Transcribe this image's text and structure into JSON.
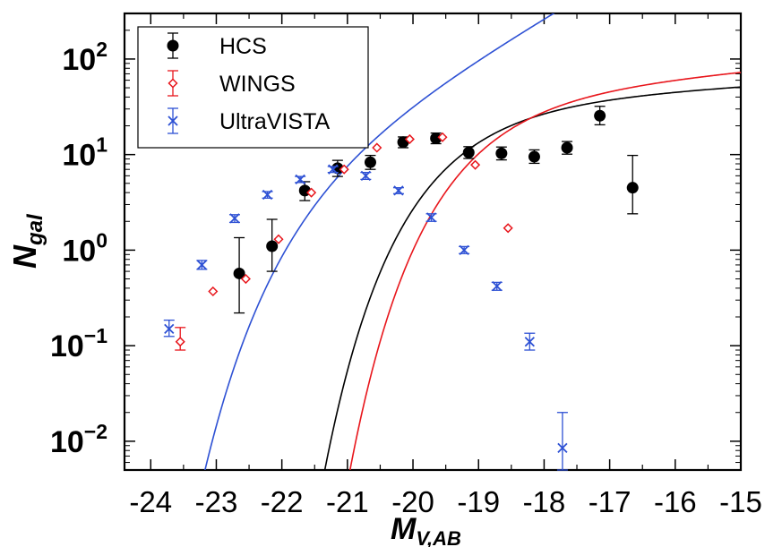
{
  "chart_data": {
    "type": "scatter",
    "title": "",
    "xlabel": "M",
    "xlabel_sub": "V,AB",
    "ylabel": "N",
    "ylabel_sub": "gal",
    "y_scale": "log",
    "xlim": [
      -24.4,
      -15.0
    ],
    "ylim": [
      0.005,
      300
    ],
    "x_ticks": [
      -24,
      -23,
      -22,
      -21,
      -20,
      -19,
      -18,
      -17,
      -16,
      -15
    ],
    "x_tick_labels": [
      "-24",
      "-23",
      "-22",
      "-21",
      "-20",
      "-19",
      "-18",
      "-17",
      "-16",
      "-15"
    ],
    "y_ticks": [
      {
        "value": 100,
        "base": "10",
        "exp": "2"
      },
      {
        "value": 10,
        "base": "10",
        "exp": "1"
      },
      {
        "value": 1,
        "base": "10",
        "exp": "0"
      },
      {
        "value": 0.1,
        "base": "10",
        "exp": "−1"
      },
      {
        "value": 0.01,
        "base": "10",
        "exp": "−2"
      }
    ],
    "grid": false,
    "legend_position": "top-left",
    "series": [
      {
        "name": "HCS",
        "color": "#000000",
        "marker": "filled-circle",
        "points": [
          {
            "x": -22.65,
            "y": 0.57,
            "lo": 0.22,
            "hi": 1.35
          },
          {
            "x": -22.15,
            "y": 1.1,
            "lo": 0.6,
            "hi": 2.1
          },
          {
            "x": -21.65,
            "y": 4.2,
            "lo": 3.3,
            "hi": 5.2
          },
          {
            "x": -21.15,
            "y": 7.2,
            "lo": 5.9,
            "hi": 8.7
          },
          {
            "x": -20.65,
            "y": 8.3,
            "lo": 7.0,
            "hi": 9.8
          },
          {
            "x": -20.15,
            "y": 13.5,
            "lo": 11.8,
            "hi": 15.3
          },
          {
            "x": -19.65,
            "y": 14.8,
            "lo": 13.0,
            "hi": 16.8
          },
          {
            "x": -19.15,
            "y": 10.5,
            "lo": 9.1,
            "hi": 12.1
          },
          {
            "x": -18.65,
            "y": 10.3,
            "lo": 8.8,
            "hi": 12.0
          },
          {
            "x": -18.15,
            "y": 9.5,
            "lo": 8.1,
            "hi": 11.2
          },
          {
            "x": -17.65,
            "y": 11.8,
            "lo": 10.1,
            "hi": 13.7
          },
          {
            "x": -17.15,
            "y": 25.5,
            "lo": 20.5,
            "hi": 32.0
          },
          {
            "x": -16.65,
            "y": 4.5,
            "lo": 2.4,
            "hi": 9.8
          }
        ]
      },
      {
        "name": "WINGS",
        "color": "#e8161c",
        "marker": "open-diamond",
        "points": [
          {
            "x": -23.55,
            "y": 0.11,
            "lo": 0.09,
            "hi": 0.155
          },
          {
            "x": -23.05,
            "y": 0.37
          },
          {
            "x": -22.55,
            "y": 0.5
          },
          {
            "x": -22.05,
            "y": 1.3
          },
          {
            "x": -21.55,
            "y": 4.0
          },
          {
            "x": -21.05,
            "y": 7.0
          },
          {
            "x": -20.55,
            "y": 11.8
          },
          {
            "x": -20.05,
            "y": 14.5
          },
          {
            "x": -19.55,
            "y": 15.2
          },
          {
            "x": -19.05,
            "y": 7.8
          },
          {
            "x": -18.55,
            "y": 1.7
          }
        ]
      },
      {
        "name": "UltraVISTA",
        "color": "#2e51d4",
        "marker": "cross",
        "points": [
          {
            "x": -23.72,
            "y": 0.15,
            "lo": 0.125,
            "hi": 0.185
          },
          {
            "x": -23.22,
            "y": 0.7,
            "lo": 0.63,
            "hi": 0.78
          },
          {
            "x": -22.72,
            "y": 2.15,
            "lo": 1.95,
            "hi": 2.35
          },
          {
            "x": -22.22,
            "y": 3.8,
            "lo": 3.5,
            "hi": 4.1
          },
          {
            "x": -21.72,
            "y": 5.5,
            "lo": 5.1,
            "hi": 5.9
          },
          {
            "x": -21.22,
            "y": 7.0,
            "lo": 6.5,
            "hi": 7.5
          },
          {
            "x": -20.72,
            "y": 6.0,
            "lo": 5.5,
            "hi": 6.5
          },
          {
            "x": -20.22,
            "y": 4.2,
            "lo": 3.9,
            "hi": 4.5
          },
          {
            "x": -19.72,
            "y": 2.2,
            "lo": 2.0,
            "hi": 2.4
          },
          {
            "x": -19.22,
            "y": 1.0,
            "lo": 0.92,
            "hi": 1.09
          },
          {
            "x": -18.72,
            "y": 0.42,
            "lo": 0.38,
            "hi": 0.46
          },
          {
            "x": -18.22,
            "y": 0.11,
            "lo": 0.09,
            "hi": 0.135
          },
          {
            "x": -17.72,
            "y": 0.0085,
            "lo": 0.005,
            "hi": 0.02
          }
        ]
      }
    ],
    "fits": [
      {
        "color": "#000000",
        "phi": 13.3,
        "mstar": -19.0,
        "alpha": -1.1
      },
      {
        "color": "#e8161c",
        "phi": 16.8,
        "mstar": -18.6,
        "alpha": -1.15
      },
      {
        "color": "#2e51d4",
        "phi": 5.3,
        "mstar": -21.2,
        "alpha": -2.0
      }
    ]
  }
}
